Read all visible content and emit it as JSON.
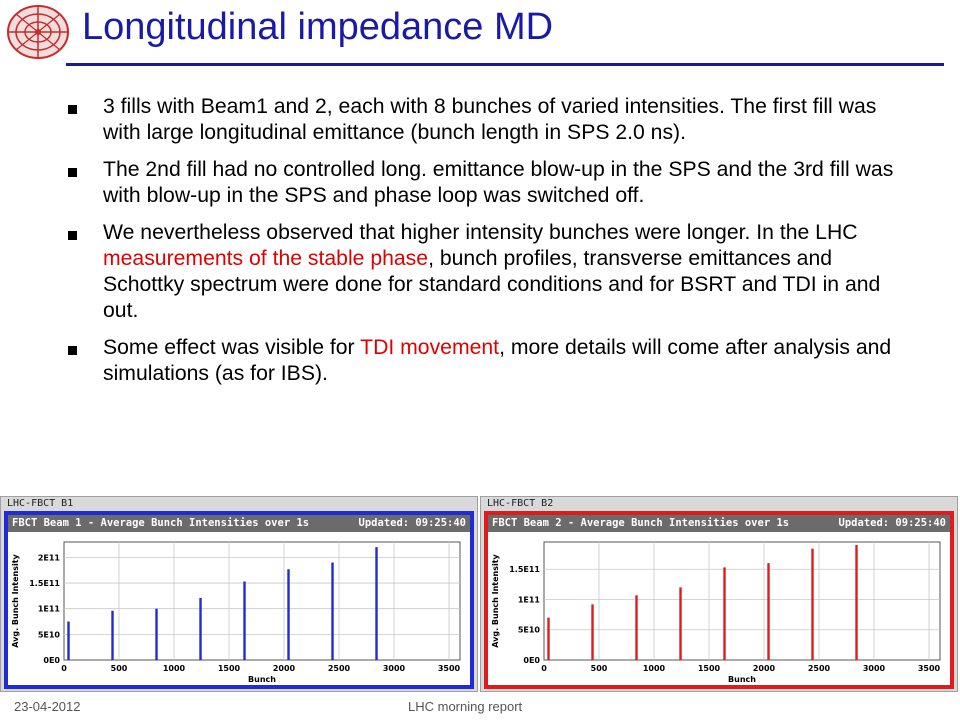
{
  "slide": {
    "title": "Longitudinal impedance MD",
    "bullets": [
      {
        "parts": [
          {
            "text": "3 fills with Beam1 and 2, each with 8 bunches of varied intensities. The first fill was with large longitudinal emittance (bunch length in SPS 2.0 ns).",
            "red": false
          }
        ]
      },
      {
        "parts": [
          {
            "text": "The 2nd fill had no controlled long. emittance blow-up in the SPS and the 3rd fill was with blow-up in the SPS and phase loop was switched off.",
            "red": false
          }
        ]
      },
      {
        "parts": [
          {
            "text": "We nevertheless observed that higher intensity bunches were longer. In the LHC ",
            "red": false
          },
          {
            "text": "measurements of the stable phase",
            "red": true
          },
          {
            "text": ", bunch profiles, transverse emittances and Schottky spectrum were done for standard conditions and for BSRT and TDI in and out.",
            "red": false
          }
        ]
      },
      {
        "parts": [
          {
            "text": "Some effect was visible for ",
            "red": false
          },
          {
            "text": "TDI movement",
            "red": true
          },
          {
            "text": ", more details will come after analysis and simulations (as for IBS).",
            "red": false
          }
        ]
      }
    ],
    "footer_date": "23-04-2012",
    "footer_center": "LHC morning report"
  },
  "colors": {
    "title": "#1a1aa8",
    "beam1": "#1f2bd6",
    "beam2": "#e01b1b"
  },
  "panels": [
    {
      "window_title": "LHC-FBCT B1",
      "header": "FBCT Beam 1 - Average Bunch Intensities over 1s",
      "updated": "Updated: 09:25:40"
    },
    {
      "window_title": "LHC-FBCT B2",
      "header": "FBCT Beam 2 - Average Bunch Intensities over 1s",
      "updated": "Updated: 09:25:40"
    }
  ],
  "chart_data": [
    {
      "type": "bar",
      "color": "#1f2bd6",
      "xlabel": "Bunch",
      "ylabel": "Avg. Bunch Intensity",
      "xlim": [
        0,
        3600
      ],
      "ylim": [
        0,
        230000000000.0
      ],
      "xticks": [
        0,
        500,
        1000,
        1500,
        2000,
        2500,
        3000,
        3500
      ],
      "xtick_labels": [
        "0",
        "500",
        "1000",
        "1500",
        "2000",
        "2500",
        "3000",
        "3500"
      ],
      "yticks": [
        0,
        50000000000.0,
        100000000000.0,
        150000000000.0,
        200000000000.0
      ],
      "ytick_labels": [
        "0E0",
        "5E10",
        "1E11",
        "1.5E11",
        "2E11"
      ],
      "grid": true,
      "x": [
        41,
        441,
        841,
        1241,
        1641,
        2041,
        2441,
        2841
      ],
      "values": [
        75000000000.0,
        96000000000.0,
        100000000000.0,
        121000000000.0,
        153000000000.0,
        177000000000.0,
        190000000000.0,
        220000000000.0
      ]
    },
    {
      "type": "bar",
      "color": "#e01b1b",
      "xlabel": "Bunch",
      "ylabel": "Avg. Bunch Intensity",
      "xlim": [
        0,
        3600
      ],
      "ylim": [
        0,
        195000000000.0
      ],
      "xticks": [
        0,
        500,
        1000,
        1500,
        2000,
        2500,
        3000,
        3500
      ],
      "xtick_labels": [
        "0",
        "500",
        "1000",
        "1500",
        "2000",
        "2500",
        "3000",
        "3500"
      ],
      "yticks": [
        0,
        50000000000.0,
        100000000000.0,
        150000000000.0
      ],
      "ytick_labels": [
        "0E0",
        "5E10",
        "1E11",
        "1.5E11"
      ],
      "grid": true,
      "x": [
        41,
        441,
        841,
        1241,
        1641,
        2041,
        2441,
        2841
      ],
      "values": [
        70000000000.0,
        92000000000.0,
        107000000000.0,
        120000000000.0,
        153000000000.0,
        160000000000.0,
        184000000000.0,
        190000000000.0
      ]
    }
  ]
}
